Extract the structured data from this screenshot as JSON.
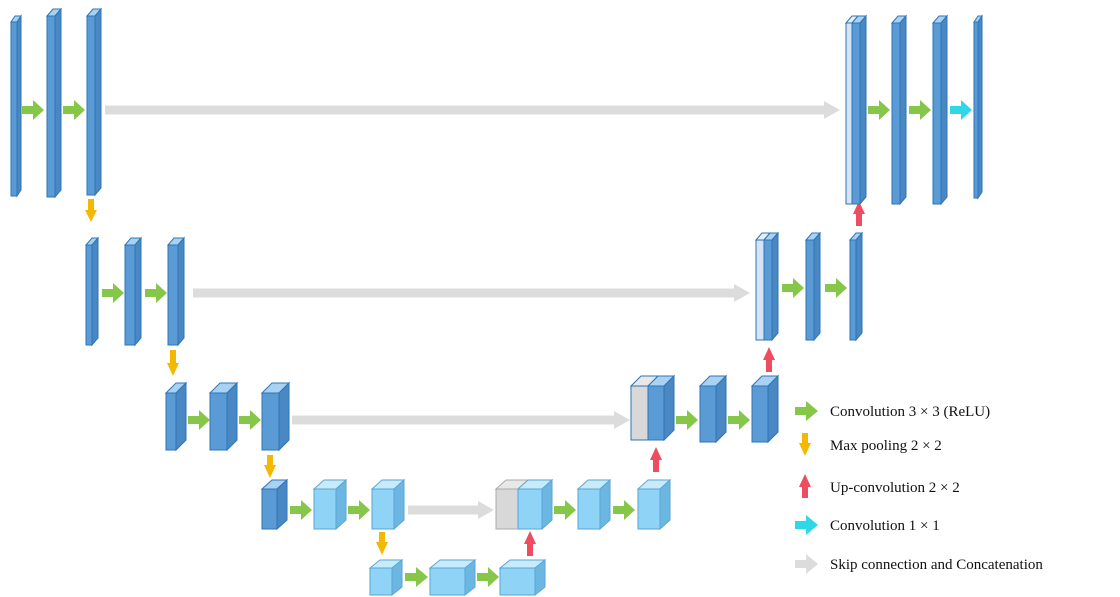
{
  "legend": {
    "conv3": "Convolution  3 × 3 (ReLU)",
    "maxpool": "Max pooling  2 × 2",
    "upconv": "Up-convolution  2 × 2",
    "conv1": "Convolution  1 × 1",
    "skip": "Skip connection and Concatenation"
  },
  "colors": {
    "conv3_arrow": "#86c649",
    "maxpool_arrow": "#f5b800",
    "upconv_arrow": "#ee4d5f",
    "conv1_arrow": "#2fd8e6",
    "skip_arrow": "#dcdcdc",
    "deep_block_front": "#5b9bd5",
    "light_block_front": "#8fd3f7",
    "concat_block_front": "#d6e4f5",
    "gray_block_front": "#d8d8d8"
  }
}
